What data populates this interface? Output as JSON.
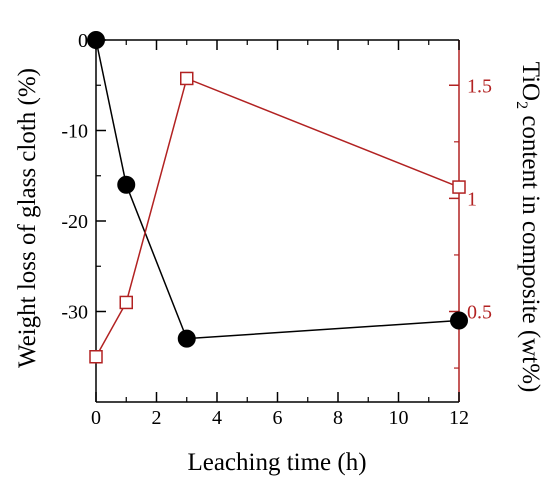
{
  "chart_data": {
    "type": "line",
    "title": "",
    "xlabel": "Leaching time (h)",
    "ylabel_left": "Weight loss of glass cloth (%)",
    "ylabel_right": {
      "prefix": "TiO",
      "subscript": "2",
      "suffix": " content in composite (wt%)"
    },
    "colors": {
      "left": "#000000",
      "right": "#b22222"
    },
    "x_ticks": [
      0,
      2,
      4,
      6,
      8,
      10,
      12
    ],
    "x_tick_labels": [
      "0",
      "2",
      "4",
      "6",
      "8",
      "10",
      "12"
    ],
    "xlim": [
      0,
      12
    ],
    "y_left_ticks": [
      0,
      -10,
      -20,
      -30
    ],
    "y_left_tick_labels": [
      "0",
      "-10",
      "-20",
      "-30"
    ],
    "ylim_left": [
      -40,
      0
    ],
    "y_right_ticks": [
      0.5,
      1,
      1.5
    ],
    "y_right_tick_labels": [
      "0.5",
      "1",
      "1.5"
    ],
    "ylim_right": [
      0.1,
      1.7
    ],
    "grid": false,
    "series": [
      {
        "axis": "left",
        "marker": "filled-circle",
        "x": [
          0,
          1,
          3,
          12
        ],
        "y": [
          0,
          -16,
          -33,
          -31
        ]
      },
      {
        "axis": "right",
        "marker": "open-square",
        "x": [
          0,
          1,
          3,
          12
        ],
        "y": [
          0.3,
          0.54,
          1.53,
          1.05
        ]
      }
    ]
  }
}
